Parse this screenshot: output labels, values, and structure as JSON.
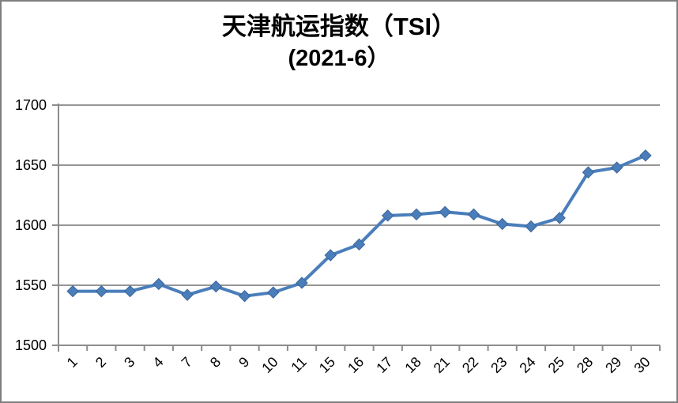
{
  "window": {
    "background": "#ffffff",
    "border_color": "#7f7f7f",
    "text_color": "#000000"
  },
  "chart_data": {
    "type": "line",
    "title_line1": "天津航运指数（TSI）",
    "title_line2": "(2021-6）",
    "categories": [
      "1",
      "2",
      "3",
      "4",
      "7",
      "8",
      "9",
      "10",
      "11",
      "15",
      "16",
      "17",
      "18",
      "21",
      "22",
      "23",
      "24",
      "25",
      "28",
      "29",
      "30"
    ],
    "series": [
      {
        "name": "TSI",
        "values": [
          1545,
          1545,
          1545,
          1551,
          1542,
          1549,
          1541,
          1544,
          1552,
          1575,
          1584,
          1608,
          1609,
          1611,
          1609,
          1601,
          1599,
          1606,
          1644,
          1648,
          1658
        ]
      }
    ],
    "xlabel": "",
    "ylabel": "",
    "ylim": [
      1500,
      1700
    ],
    "yticks": [
      1500,
      1550,
      1600,
      1650,
      1700
    ],
    "x_label_rotation": -45,
    "grid": true,
    "legend_position": "none",
    "marker": "diamond",
    "line_color": "#4a7ebb",
    "marker_color": "#4a7ebb",
    "marker_edge_color": "#3c6496",
    "gridline_color": "#969696",
    "axis_color": "#8c8c8c",
    "tick_label_color": "#000000",
    "tick_font_size": 18
  }
}
